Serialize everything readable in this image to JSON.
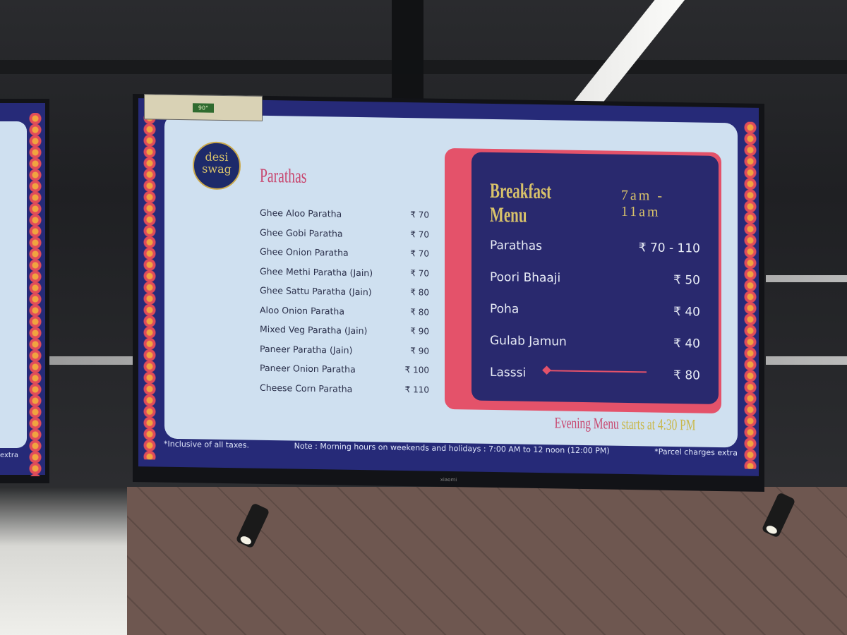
{
  "sticker": {
    "rating": "90°"
  },
  "logo": {
    "text_top": "desi",
    "text_bottom": "swag"
  },
  "parathas": {
    "title": "Parathas",
    "items": [
      {
        "name": "Ghee Aloo Paratha",
        "price": "₹ 70"
      },
      {
        "name": "Ghee Gobi Paratha",
        "price": "₹ 70"
      },
      {
        "name": "Ghee Onion Paratha",
        "price": "₹ 70"
      },
      {
        "name": "Ghee Methi Paratha (Jain)",
        "price": "₹ 70"
      },
      {
        "name": "Ghee Sattu Paratha (Jain)",
        "price": "₹ 80"
      },
      {
        "name": "Aloo Onion Paratha",
        "price": "₹ 80"
      },
      {
        "name": "Mixed Veg Paratha (Jain)",
        "price": "₹ 90"
      },
      {
        "name": "Paneer Paratha (Jain)",
        "price": "₹ 90"
      },
      {
        "name": "Paneer Onion Paratha",
        "price": "₹ 100"
      },
      {
        "name": "Cheese Corn Paratha",
        "price": "₹ 110"
      }
    ]
  },
  "breakfast": {
    "title": "Breakfast Menu",
    "time": "7am - 11am",
    "items": [
      {
        "name": "Parathas",
        "price": "₹ 70 - 110"
      },
      {
        "name": "Poori Bhaaji",
        "price": "₹ 50"
      },
      {
        "name": "Poha",
        "price": "₹ 40"
      },
      {
        "name": "Gulab Jamun",
        "price": "₹ 40"
      },
      {
        "name": "Lasssi",
        "price": "₹ 80"
      }
    ]
  },
  "evening": {
    "part1": "Evening Menu",
    "part2": "starts at 4:30 PM"
  },
  "footer": {
    "taxes": "*Inclusive of all taxes.",
    "note": "Note :  Morning hours on weekends and holidays : 7:00 AM to 12 noon (12:00 PM)",
    "parcel": "*Parcel charges extra"
  },
  "tv_brand": "xiaomi",
  "left_tv": {
    "footer_fragment": "extra"
  },
  "colors": {
    "navy": "#29296e",
    "pink": "#c8466e",
    "gold": "#d8c26a",
    "panel": "#cfe0f0"
  }
}
